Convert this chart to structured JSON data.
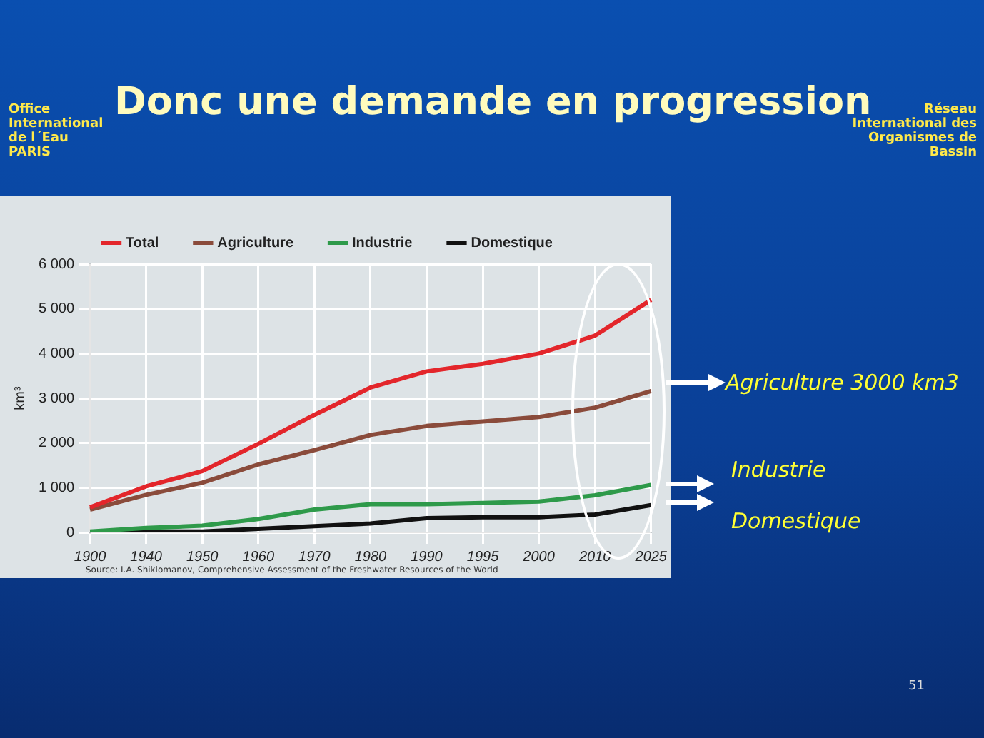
{
  "chart_data": {
    "type": "line",
    "title": "Donc une demande en progression",
    "ylabel": "km³",
    "categories": [
      "1900",
      "1940",
      "1950",
      "1960",
      "1970",
      "1980",
      "1990",
      "1995",
      "2000",
      "2010",
      "2025"
    ],
    "series": [
      {
        "name": "Total",
        "color": "#e3262b",
        "values": [
          560,
          1030,
          1370,
          1980,
          2630,
          3240,
          3600,
          3770,
          4000,
          4400,
          5200
        ]
      },
      {
        "name": "Agriculture",
        "color": "#8a4b3b",
        "values": [
          510,
          840,
          1110,
          1520,
          1840,
          2180,
          2380,
          2480,
          2580,
          2790,
          3160
        ]
      },
      {
        "name": "Industrie",
        "color": "#2e9a4a",
        "values": [
          20,
          100,
          150,
          300,
          510,
          630,
          630,
          660,
          690,
          830,
          1060
        ]
      },
      {
        "name": "Domestique",
        "color": "#111111",
        "values": [
          0,
          20,
          20,
          80,
          140,
          200,
          320,
          340,
          340,
          400,
          610
        ]
      }
    ],
    "ylim": [
      0,
      6000
    ],
    "yticks": [
      0,
      {
        "value": 1000,
        "label": "1 000"
      },
      {
        "value": 2000,
        "label": "2 000"
      },
      {
        "value": 3000,
        "label": "3 000"
      },
      {
        "value": 4000,
        "label": "4 000"
      },
      {
        "value": 5000,
        "label": "5 000"
      },
      {
        "value": 6000,
        "label": "6 000"
      }
    ],
    "grid": true,
    "legend": "top",
    "marker": "none",
    "line_style": "solid",
    "annotations": [
      "Agriculture 3000 km3",
      "Industrie",
      "Domestique",
      "Source: I.A. Shiklomanov, Comprehensive Assessment of the Freshwater Resources of the World",
      "Office International de l´Eau PARIS",
      "Réseau International des Organismes de Bassin",
      "51"
    ]
  }
}
